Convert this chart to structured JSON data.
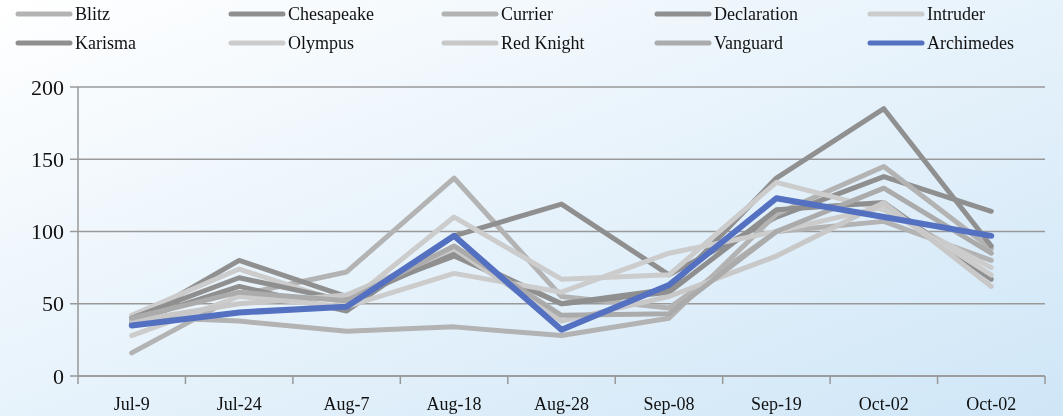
{
  "chart_data": {
    "type": "line",
    "categories": [
      "Jul-9",
      "Jul-24",
      "Aug-7",
      "Aug-18",
      "Aug-28",
      "Sep-08",
      "Sep-19",
      "Oct-02",
      "Oct-02"
    ],
    "ylim": [
      0,
      200
    ],
    "yticks": [
      0,
      50,
      100,
      150,
      200
    ],
    "grid": "y",
    "legend": "top",
    "line_style": "solid",
    "marker": "none",
    "series": [
      {
        "name": "Blitz",
        "color": "#b3b3b3",
        "values": [
          16,
          56,
          72,
          137,
          55,
          47,
          100,
          107,
          80
        ]
      },
      {
        "name": "Chesapeake",
        "color": "#8f8f8f",
        "values": [
          38,
          62,
          45,
          97,
          119,
          70,
          110,
          138,
          114
        ]
      },
      {
        "name": "Currier",
        "color": "#b3b3b3",
        "values": [
          41,
          38,
          31,
          34,
          28,
          40,
          112,
          145,
          88
        ]
      },
      {
        "name": "Declaration",
        "color": "#909090",
        "values": [
          37,
          80,
          55,
          83,
          50,
          60,
          137,
          185,
          90
        ]
      },
      {
        "name": "Intruder",
        "color": "#cccccc",
        "values": [
          42,
          74,
          50,
          110,
          67,
          70,
          134,
          115,
          75
        ]
      },
      {
        "name": "Karisma",
        "color": "#8f8f8f",
        "values": [
          40,
          68,
          52,
          85,
          50,
          58,
          115,
          120,
          67
        ]
      },
      {
        "name": "Olympus",
        "color": "#cccccc",
        "values": [
          28,
          55,
          48,
          71,
          58,
          85,
          100,
          117,
          70
        ]
      },
      {
        "name": "Red Knight",
        "color": "#c8c8c8",
        "values": [
          38,
          50,
          56,
          88,
          38,
          55,
          83,
          120,
          62
        ]
      },
      {
        "name": "Vanguard",
        "color": "#ababab",
        "values": [
          40,
          58,
          52,
          90,
          42,
          43,
          100,
          130,
          85
        ]
      },
      {
        "name": "Archimedes",
        "color": "#5470c1",
        "values": [
          35,
          44,
          48,
          97,
          32,
          63,
          123,
          110,
          97
        ]
      }
    ]
  }
}
